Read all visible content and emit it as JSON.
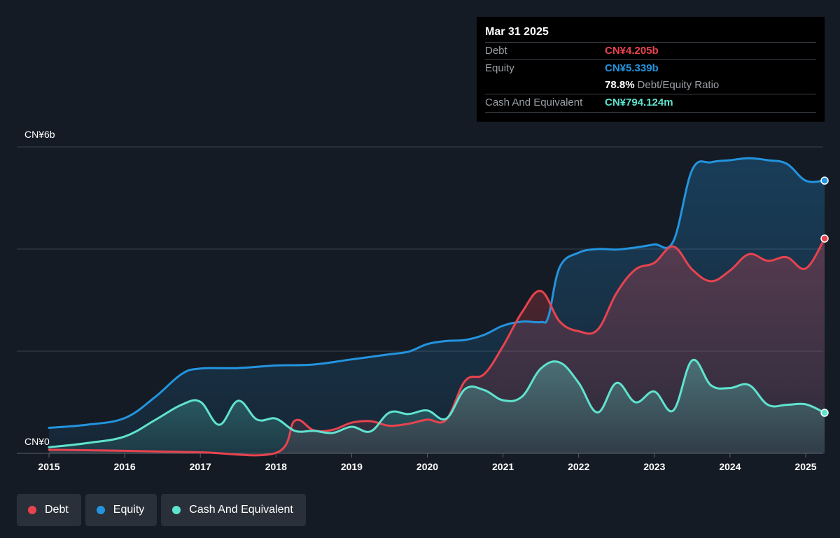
{
  "tooltip": {
    "date": "Mar 31 2025",
    "debt_label": "Debt",
    "debt_value": "CN¥4.205b",
    "equity_label": "Equity",
    "equity_value": "CN¥5.339b",
    "ratio_value": "78.8%",
    "ratio_label": "Debt/Equity Ratio",
    "cash_label": "Cash And Equivalent",
    "cash_value": "CN¥794.124m"
  },
  "legend": {
    "debt": "Debt",
    "equity": "Equity",
    "cash": "Cash And Equivalent"
  },
  "colors": {
    "background": "#151b24",
    "debt": "#e8434f",
    "equity": "#2394df",
    "cash": "#5fe3cf",
    "grid": "#3a404a"
  },
  "chart_data": {
    "type": "area",
    "y_unit": "CN¥ billions",
    "ylim": [
      0,
      6
    ],
    "y_tick_labels": [
      {
        "value": 0,
        "label": "CN¥0"
      },
      {
        "value": 6,
        "label": "CN¥6b"
      }
    ],
    "y_gridlines": [
      0,
      2,
      4,
      6
    ],
    "xlim": [
      2015,
      2025.25
    ],
    "x_tick_labels": [
      "2015",
      "2016",
      "2017",
      "2018",
      "2019",
      "2020",
      "2021",
      "2022",
      "2023",
      "2024",
      "2025"
    ],
    "grid": true,
    "series": [
      {
        "name": "Equity",
        "color": "#2394df",
        "points": [
          [
            2015.0,
            0.5
          ],
          [
            2015.5,
            0.56
          ],
          [
            2016.0,
            0.69
          ],
          [
            2016.4,
            1.1
          ],
          [
            2016.75,
            1.55
          ],
          [
            2017.0,
            1.66
          ],
          [
            2017.5,
            1.67
          ],
          [
            2018.0,
            1.72
          ],
          [
            2018.5,
            1.74
          ],
          [
            2019.0,
            1.84
          ],
          [
            2019.5,
            1.94
          ],
          [
            2019.75,
            1.99
          ],
          [
            2020.0,
            2.14
          ],
          [
            2020.25,
            2.2
          ],
          [
            2020.5,
            2.22
          ],
          [
            2020.75,
            2.32
          ],
          [
            2021.0,
            2.5
          ],
          [
            2021.25,
            2.58
          ],
          [
            2021.5,
            2.57
          ],
          [
            2021.6,
            2.68
          ],
          [
            2021.75,
            3.65
          ],
          [
            2022.0,
            3.93
          ],
          [
            2022.25,
            4.0
          ],
          [
            2022.5,
            3.99
          ],
          [
            2022.75,
            4.03
          ],
          [
            2023.0,
            4.09
          ],
          [
            2023.25,
            4.15
          ],
          [
            2023.5,
            5.55
          ],
          [
            2023.75,
            5.7
          ],
          [
            2024.0,
            5.74
          ],
          [
            2024.25,
            5.78
          ],
          [
            2024.5,
            5.74
          ],
          [
            2024.75,
            5.67
          ],
          [
            2025.0,
            5.34
          ],
          [
            2025.25,
            5.34
          ]
        ]
      },
      {
        "name": "Debt",
        "color": "#e8434f",
        "points": [
          [
            2015.0,
            0.07
          ],
          [
            2016.0,
            0.05
          ],
          [
            2017.0,
            0.02
          ],
          [
            2018.0,
            0.01
          ],
          [
            2018.25,
            0.64
          ],
          [
            2018.5,
            0.45
          ],
          [
            2018.75,
            0.46
          ],
          [
            2019.0,
            0.6
          ],
          [
            2019.25,
            0.63
          ],
          [
            2019.5,
            0.54
          ],
          [
            2019.75,
            0.58
          ],
          [
            2020.0,
            0.66
          ],
          [
            2020.25,
            0.66
          ],
          [
            2020.5,
            1.42
          ],
          [
            2020.75,
            1.55
          ],
          [
            2021.0,
            2.1
          ],
          [
            2021.25,
            2.76
          ],
          [
            2021.5,
            3.18
          ],
          [
            2021.75,
            2.58
          ],
          [
            2022.0,
            2.39
          ],
          [
            2022.25,
            2.42
          ],
          [
            2022.5,
            3.14
          ],
          [
            2022.75,
            3.6
          ],
          [
            2023.0,
            3.73
          ],
          [
            2023.25,
            4.05
          ],
          [
            2023.5,
            3.6
          ],
          [
            2023.75,
            3.37
          ],
          [
            2024.0,
            3.58
          ],
          [
            2024.25,
            3.9
          ],
          [
            2024.5,
            3.77
          ],
          [
            2024.75,
            3.84
          ],
          [
            2025.0,
            3.62
          ],
          [
            2025.25,
            4.205
          ]
        ]
      },
      {
        "name": "Cash And Equivalent",
        "color": "#5fe3cf",
        "points": [
          [
            2015.0,
            0.12
          ],
          [
            2015.5,
            0.2
          ],
          [
            2016.0,
            0.33
          ],
          [
            2016.4,
            0.65
          ],
          [
            2016.75,
            0.95
          ],
          [
            2017.0,
            1.01
          ],
          [
            2017.25,
            0.56
          ],
          [
            2017.5,
            1.03
          ],
          [
            2017.75,
            0.66
          ],
          [
            2018.0,
            0.68
          ],
          [
            2018.25,
            0.44
          ],
          [
            2018.5,
            0.44
          ],
          [
            2018.75,
            0.4
          ],
          [
            2019.0,
            0.52
          ],
          [
            2019.25,
            0.43
          ],
          [
            2019.5,
            0.8
          ],
          [
            2019.75,
            0.77
          ],
          [
            2020.0,
            0.84
          ],
          [
            2020.25,
            0.68
          ],
          [
            2020.5,
            1.26
          ],
          [
            2020.75,
            1.24
          ],
          [
            2021.0,
            1.04
          ],
          [
            2021.25,
            1.11
          ],
          [
            2021.5,
            1.66
          ],
          [
            2021.75,
            1.78
          ],
          [
            2022.0,
            1.38
          ],
          [
            2022.25,
            0.8
          ],
          [
            2022.5,
            1.38
          ],
          [
            2022.75,
            1.0
          ],
          [
            2023.0,
            1.21
          ],
          [
            2023.25,
            0.84
          ],
          [
            2023.5,
            1.82
          ],
          [
            2023.75,
            1.33
          ],
          [
            2024.0,
            1.28
          ],
          [
            2024.25,
            1.34
          ],
          [
            2024.5,
            0.95
          ],
          [
            2024.75,
            0.95
          ],
          [
            2025.0,
            0.96
          ],
          [
            2025.25,
            0.794
          ]
        ]
      }
    ]
  }
}
